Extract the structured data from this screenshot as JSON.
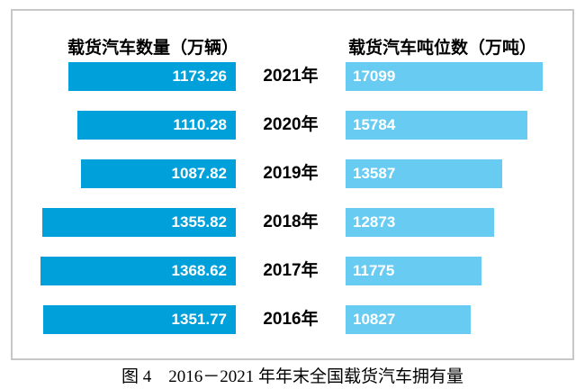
{
  "chart_data": {
    "type": "bar",
    "variant": "diverging-horizontal",
    "title": "图 4　2016－2021 年年末全国载货汽车拥有量",
    "categories": [
      "2021年",
      "2020年",
      "2019年",
      "2018年",
      "2017年",
      "2016年"
    ],
    "series": [
      {
        "name": "载货汽车数量（万辆）",
        "values": [
          1173.26,
          1110.28,
          1087.82,
          1355.82,
          1368.62,
          1351.77
        ],
        "labels": [
          "1173.26",
          "1110.28",
          "1087.82",
          "1355.82",
          "1368.62",
          "1351.77"
        ],
        "color": "#00A0DA",
        "bar_direction": "right-to-left",
        "value_label_align": "right-inside"
      },
      {
        "name": "载货汽车吨位数（万吨）",
        "values": [
          17099,
          15784,
          13587,
          12873,
          11775,
          10827
        ],
        "labels": [
          "17099",
          "15784",
          "13587",
          "12873",
          "11775",
          "10827"
        ],
        "color": "#67CBF2",
        "bar_direction": "left-to-right",
        "value_label_align": "left-inside"
      }
    ],
    "legend_position": "top",
    "grid": false,
    "value_labels": "inside-bars"
  },
  "colors": {
    "left_bar": "#00A0DA",
    "right_bar": "#67CBF2",
    "bar_value_text": "#FFFFFF",
    "text": "#000000",
    "border": "#C7C7C7",
    "background": "#FFFFFF"
  }
}
